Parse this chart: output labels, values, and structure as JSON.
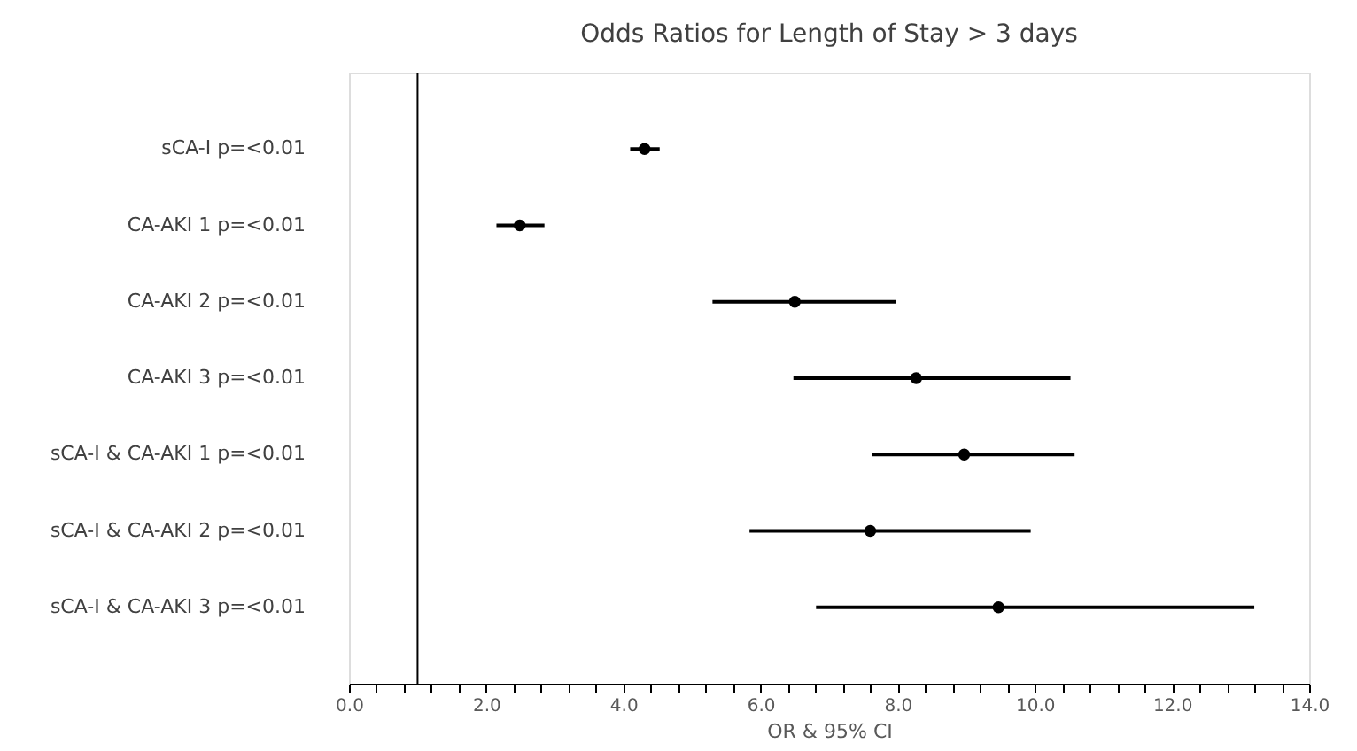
{
  "chart_data": {
    "type": "scatter",
    "orientation": "horizontal",
    "title": "Odds Ratios for Length of Stay > 3 days",
    "xlabel": "OR & 95% CI",
    "categories": [
      "sCA-I   p=<0.01",
      "CA-AKI 1   p=<0.01",
      "CA-AKI 2   p=<0.01",
      "CA-AKI 3   p=<0.01",
      "sCA-I & CA-AKI 1   p=<0.01",
      "sCA-I & CA-AKI 2   p=<0.01",
      "sCA-I & CA-AKI 3   p=<0.01"
    ],
    "color": "#000000",
    "values": [
      4.31,
      2.49,
      6.5,
      8.27,
      8.97,
      7.6,
      9.47
    ],
    "errors": [
      [
        4.1,
        4.53
      ],
      [
        2.15,
        2.85
      ],
      [
        5.3,
        7.97
      ],
      [
        6.48,
        10.52
      ],
      [
        7.62,
        10.58
      ],
      [
        5.84,
        9.94
      ],
      [
        6.81,
        13.2
      ]
    ],
    "xlim": [
      0,
      14
    ],
    "xticks": [
      {
        "value": 0,
        "label": "0.0"
      },
      {
        "value": 0.4,
        "label": null
      },
      {
        "value": 0.8,
        "label": null
      },
      {
        "value": 1.2,
        "label": null
      },
      {
        "value": 1.6,
        "label": null
      },
      {
        "value": 2,
        "label": "2.0"
      },
      {
        "value": 2.4,
        "label": null
      },
      {
        "value": 2.8,
        "label": null
      },
      {
        "value": 3.2,
        "label": null
      },
      {
        "value": 3.6,
        "label": null
      },
      {
        "value": 4,
        "label": "4.0"
      },
      {
        "value": 4.4,
        "label": null
      },
      {
        "value": 4.8,
        "label": null
      },
      {
        "value": 5.2,
        "label": null
      },
      {
        "value": 5.6,
        "label": null
      },
      {
        "value": 6,
        "label": "6.0"
      },
      {
        "value": 6.4,
        "label": null
      },
      {
        "value": 6.8,
        "label": null
      },
      {
        "value": 7.2,
        "label": null
      },
      {
        "value": 7.6,
        "label": null
      },
      {
        "value": 8,
        "label": "8.0"
      },
      {
        "value": 8.4,
        "label": null
      },
      {
        "value": 8.8,
        "label": null
      },
      {
        "value": 9.2,
        "label": null
      },
      {
        "value": 9.6,
        "label": null
      },
      {
        "value": 10,
        "label": "10.0"
      },
      {
        "value": 10.4,
        "label": null
      },
      {
        "value": 10.8,
        "label": null
      },
      {
        "value": 11.2,
        "label": null
      },
      {
        "value": 11.6,
        "label": null
      },
      {
        "value": 12,
        "label": "12.0"
      },
      {
        "value": 12.4,
        "label": null
      },
      {
        "value": 12.8,
        "label": null
      },
      {
        "value": 13.2,
        "label": null
      },
      {
        "value": 13.6,
        "label": null
      },
      {
        "value": 14,
        "label": "14.0"
      }
    ],
    "ref_lines": [
      {
        "axis": "x",
        "value": 1,
        "color": "#000000"
      }
    ],
    "marker": "circle",
    "grid": false
  }
}
